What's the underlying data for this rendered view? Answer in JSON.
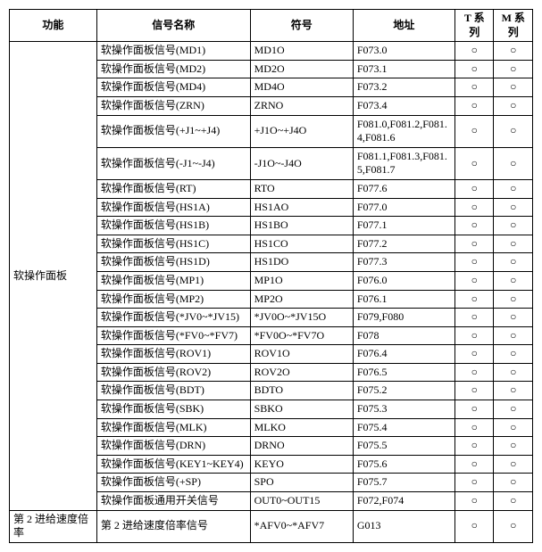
{
  "headers": {
    "func": "功能",
    "name": "信号名称",
    "symbol": "符号",
    "addr": "地址",
    "t": "T 系列",
    "m": "M 系列"
  },
  "group1_label": "软操作面板",
  "group2_label": "第 2 进给速度倍率",
  "circle": "○",
  "rows": [
    {
      "name": "软操作面板信号(MD1)",
      "symbol": "MD1O",
      "addr": "F073.0",
      "t": true,
      "m": true
    },
    {
      "name": "软操作面板信号(MD2)",
      "symbol": "MD2O",
      "addr": "F073.1",
      "t": true,
      "m": true
    },
    {
      "name": "软操作面板信号(MD4)",
      "symbol": "MD4O",
      "addr": "F073.2",
      "t": true,
      "m": true
    },
    {
      "name": "软操作面板信号(ZRN)",
      "symbol": "ZRNO",
      "addr": "F073.4",
      "t": true,
      "m": true
    },
    {
      "name": "软操作面板信号(+J1~+J4)",
      "symbol": "+J1O~+J4O",
      "addr": "F081.0,F081.2,F081.4,F081.6",
      "t": true,
      "m": true
    },
    {
      "name": "软操作面板信号(-J1~-J4)",
      "symbol": "-J1O~-J4O",
      "addr": "F081.1,F081.3,F081.5,F081.7",
      "t": true,
      "m": true
    },
    {
      "name": "软操作面板信号(RT)",
      "symbol": "RTO",
      "addr": "F077.6",
      "t": true,
      "m": true
    },
    {
      "name": "软操作面板信号(HS1A)",
      "symbol": "HS1AO",
      "addr": "F077.0",
      "t": true,
      "m": true
    },
    {
      "name": "软操作面板信号(HS1B)",
      "symbol": "HS1BO",
      "addr": "F077.1",
      "t": true,
      "m": true
    },
    {
      "name": "软操作面板信号(HS1C)",
      "symbol": "HS1CO",
      "addr": "F077.2",
      "t": true,
      "m": true
    },
    {
      "name": "软操作面板信号(HS1D)",
      "symbol": "HS1DO",
      "addr": "F077.3",
      "t": true,
      "m": true
    },
    {
      "name": "软操作面板信号(MP1)",
      "symbol": "MP1O",
      "addr": "F076.0",
      "t": true,
      "m": true
    },
    {
      "name": "软操作面板信号(MP2)",
      "symbol": "MP2O",
      "addr": "F076.1",
      "t": true,
      "m": true
    },
    {
      "name": "软操作面板信号(*JV0~*JV15)",
      "symbol": "*JV0O~*JV15O",
      "addr": "F079,F080",
      "t": true,
      "m": true
    },
    {
      "name": "软操作面板信号(*FV0~*FV7)",
      "symbol": "*FV0O~*FV7O",
      "addr": "F078",
      "t": true,
      "m": true
    },
    {
      "name": "软操作面板信号(ROV1)",
      "symbol": "ROV1O",
      "addr": "F076.4",
      "t": true,
      "m": true
    },
    {
      "name": "软操作面板信号(ROV2)",
      "symbol": "ROV2O",
      "addr": "F076.5",
      "t": true,
      "m": true
    },
    {
      "name": "软操作面板信号(BDT)",
      "symbol": "BDTO",
      "addr": "F075.2",
      "t": true,
      "m": true
    },
    {
      "name": "软操作面板信号(SBK)",
      "symbol": "SBKO",
      "addr": "F075.3",
      "t": true,
      "m": true
    },
    {
      "name": "软操作面板信号(MLK)",
      "symbol": "MLKO",
      "addr": "F075.4",
      "t": true,
      "m": true
    },
    {
      "name": "软操作面板信号(DRN)",
      "symbol": "DRNO",
      "addr": "F075.5",
      "t": true,
      "m": true
    },
    {
      "name": "软操作面板信号(KEY1~KEY4)",
      "symbol": "KEYO",
      "addr": "F075.6",
      "t": true,
      "m": true
    },
    {
      "name": "软操作面板信号(+SP)",
      "symbol": "SPO",
      "addr": "F075.7",
      "t": true,
      "m": true
    },
    {
      "name": "软操作面板通用开关信号",
      "symbol": "OUT0~OUT15",
      "addr": "F072,F074",
      "t": true,
      "m": true
    }
  ],
  "row2": {
    "name": "第 2 进给速度倍率信号",
    "symbol": "*AFV0~*AFV7",
    "addr": "G013",
    "t": true,
    "m": true
  }
}
